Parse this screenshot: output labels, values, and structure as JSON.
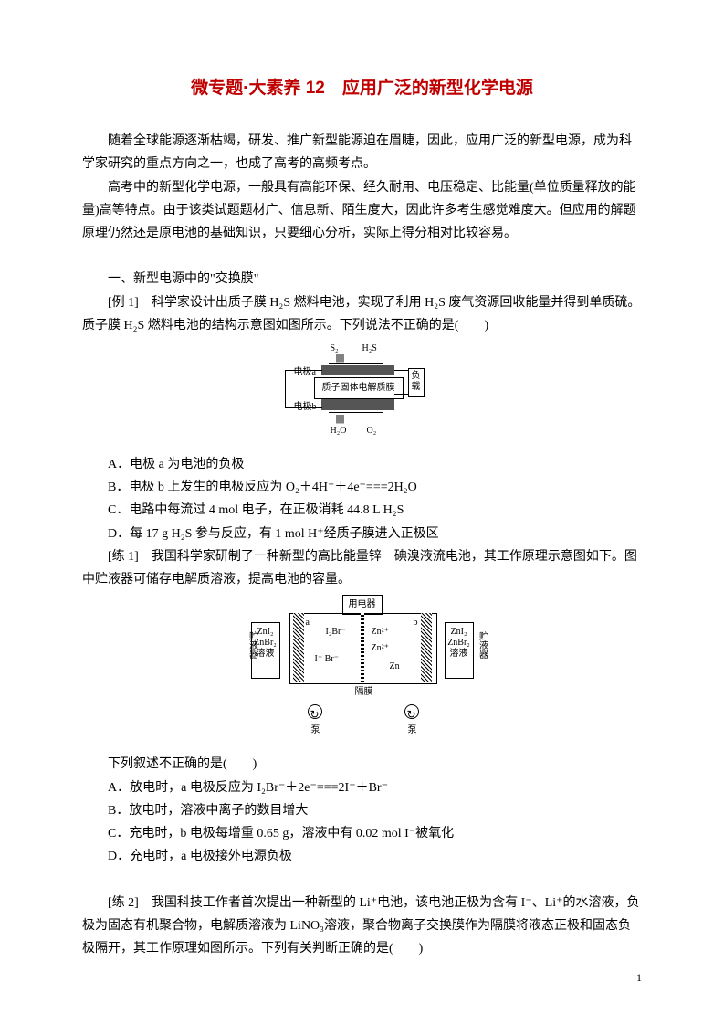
{
  "title": "微专题·大素养 12　应用广泛的新型化学电源",
  "intro": [
    "随着全球能源逐渐枯竭，研发、推广新型能源迫在眉睫，因此，应用广泛的新型电源，成为科学家研究的重点方向之一，也成了高考的高频考点。",
    "高考中的新型化学电源，一般具有高能环保、经久耐用、电压稳定、比能量(单位质量释放的能量)高等特点。由于该类试题题材广、信息新、陌生度大，因此许多考生感觉难度大。但应用的解题原理仍然还是原电池的基础知识，只要细心分析，实际上得分相对比较容易。"
  ],
  "section1_head": "一、新型电源中的\"交换膜\"",
  "ex1_stem1": "[例 1]　科学家设计出质子膜 H₂S 燃料电池，实现了利用 H₂S 废气资源回收能量并得到单质硫。质子膜 H₂S 燃料电池的结构示意图如图所示。下列说法不正确的是(　　)",
  "diagram1": {
    "top_out_left": "S₂",
    "top_in_right": "H₂S",
    "electrode_a": "电极a",
    "electrode_b": "电极b",
    "membrane": "质子固体电解质膜",
    "load": "负载",
    "bottom_out_left": "H₂O",
    "bottom_in_right": "O₂"
  },
  "ex1_choices": {
    "A": "A．电极 a 为电池的负极",
    "B": "B．电极 b 上发生的电极反应为 O₂＋4H⁺＋4e⁻===2H₂O",
    "C": "C．电路中每流过 4 mol 电子，在正极消耗 44.8 L H₂S",
    "D": "D．每 17 g H₂S 参与反应，有 1 mol H⁺经质子膜进入正极区"
  },
  "pr1_stem1": "[练 1]　我国科学家研制了一种新型的高比能量锌－碘溴液流电池，其工作原理示意图如下。图中贮液器可储存电解质溶液，提高电池的容量。",
  "diagram2": {
    "appliance": "用电器",
    "tank_left_line1": "ZnI₂",
    "tank_left_line2": "ZnBr₂",
    "tank_left_line3": "溶液",
    "tank_right_line1": "ZnI₂",
    "tank_right_line2": "ZnBr₂",
    "tank_right_line3": "溶液",
    "reservoir_left": "贮液器",
    "reservoir_right": "贮液器",
    "electrode_a": "a",
    "electrode_b": "b",
    "ion_i2br": "I₂Br⁻",
    "ion_zn2": "Zn²⁺",
    "ion_i": "I⁻",
    "ion_br": "Br⁻",
    "ion_zn": "Zn",
    "membrane": "隔膜",
    "pump": "泵"
  },
  "pr1_q": "下列叙述不正确的是(　　)",
  "pr1_choices": {
    "A": "A．放电时，a 电极反应为 I₂Br⁻＋2e⁻===2I⁻＋Br⁻",
    "B": "B．放电时，溶液中离子的数目增大",
    "C": "C．充电时，b 电极每增重 0.65 g，溶液中有 0.02 mol I⁻被氧化",
    "D": "D．充电时，a 电极接外电源负极"
  },
  "pr2_stem": "[练 2]　我国科技工作者首次提出一种新型的 Li⁺电池，该电池正极为含有 I⁻、Li⁺的水溶液，负极为固态有机聚合物，电解质溶液为 LiNO₃溶液，聚合物离子交换膜作为隔膜将液态正极和固态负极隔开，其工作原理如图所示。下列有关判断正确的是(　　)",
  "page_number": "1"
}
